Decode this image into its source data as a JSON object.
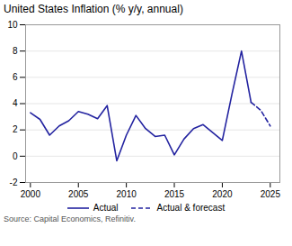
{
  "chart_data": {
    "type": "line",
    "title": "United States Inflation (% y/y, annual)",
    "source": "Source: Capital Economics, Refinitiv.",
    "xlim": [
      1999.5,
      2026
    ],
    "xticks": [
      2000,
      2005,
      2010,
      2015,
      2020,
      2025
    ],
    "ylim": [
      -2,
      10
    ],
    "yticks": [
      -2,
      0,
      2,
      4,
      6,
      8,
      10
    ],
    "grid": true,
    "legend": "bottom",
    "series": [
      {
        "name": "Actual",
        "color": "#2323a0",
        "line_style": "solid",
        "x": [
          2000,
          2001,
          2002,
          2003,
          2004,
          2005,
          2006,
          2007,
          2008,
          2009,
          2010,
          2011,
          2012,
          2013,
          2014,
          2015,
          2016,
          2017,
          2018,
          2019,
          2020,
          2021,
          2022,
          2023
        ],
        "values": [
          3.3,
          2.8,
          1.6,
          2.3,
          2.7,
          3.4,
          3.2,
          2.85,
          3.85,
          -0.35,
          1.6,
          3.1,
          2.1,
          1.5,
          1.6,
          0.1,
          1.3,
          2.1,
          2.4,
          1.8,
          1.2,
          4.7,
          8.0,
          4.1
        ]
      },
      {
        "name": "Actual & forecast",
        "color": "#2323a0",
        "line_style": "dashed",
        "x": [
          2023,
          2024,
          2025
        ],
        "values": [
          4.1,
          3.5,
          2.3
        ]
      }
    ]
  }
}
